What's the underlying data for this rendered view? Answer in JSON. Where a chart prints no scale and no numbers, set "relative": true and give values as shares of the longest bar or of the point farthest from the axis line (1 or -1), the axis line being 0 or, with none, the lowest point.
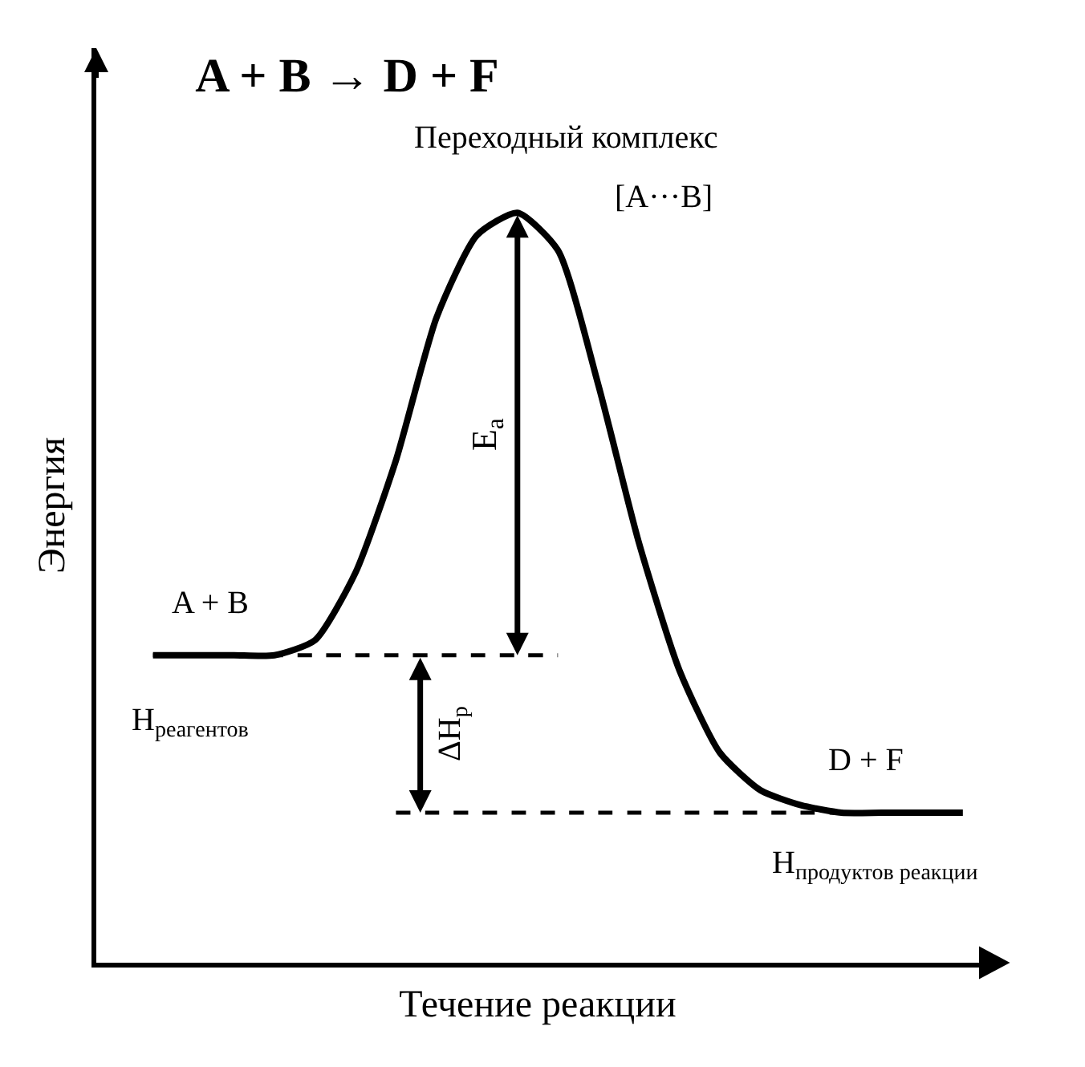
{
  "chart_data": {
    "type": "line",
    "relative": true,
    "title": "A + B → D + F",
    "xlabel": "Течение реакции",
    "ylabel": "Энергия",
    "categories": [
      null,
      null,
      null,
      null,
      null,
      null,
      null,
      null,
      null,
      null,
      null,
      null,
      null,
      null,
      null,
      null,
      null,
      null,
      null,
      null,
      null
    ],
    "series": [
      {
        "color": "#000000",
        "line_style": "solid",
        "values": [
          0.41,
          0.41,
          0.41,
          0.41,
          0.43,
          0.52,
          0.67,
          0.86,
          0.97,
          1.0,
          0.95,
          0.77,
          0.56,
          0.39,
          0.28,
          0.23,
          0.21,
          0.2,
          0.2,
          0.2,
          0.2
        ]
      },
      {
        "color": "#000000",
        "line_style": "dashed",
        "values": [
          0.41,
          0.41,
          0.41,
          0.41,
          0.41,
          0.41,
          0.41,
          0.41,
          0.41,
          0.41,
          0.41,
          null,
          null,
          null,
          null,
          null,
          null,
          null,
          null,
          null,
          null
        ]
      },
      {
        "color": "#000000",
        "line_style": "dashed",
        "values": [
          null,
          null,
          null,
          null,
          null,
          null,
          0.2,
          0.2,
          0.2,
          0.2,
          0.2,
          0.2,
          0.2,
          0.2,
          0.2,
          0.2,
          0.2,
          0.2,
          0.2,
          0.2,
          0.2
        ]
      }
    ],
    "annotations": [
      "Переходный комплекс",
      "[A···B]",
      "A + B",
      "D + F",
      "E$_{a}$",
      "H$_{реагентов}$",
      "ΔH$_{р}$",
      "H$_{продуктов реакции}$"
    ],
    "legend": false,
    "marker": "none"
  }
}
